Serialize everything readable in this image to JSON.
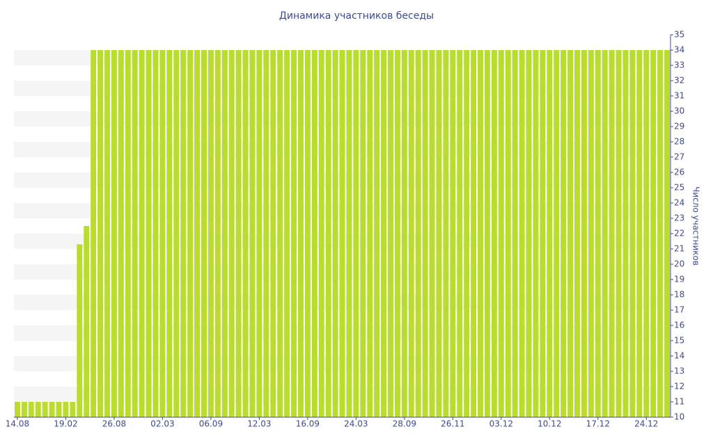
{
  "chart_data": {
    "type": "bar",
    "title": "Динамика участников беседы",
    "y_axis_label": "Число участников",
    "categories": [
      "14.08",
      null,
      null,
      null,
      null,
      null,
      null,
      "19.02",
      null,
      null,
      null,
      null,
      null,
      null,
      "26.08",
      null,
      null,
      null,
      null,
      null,
      null,
      "02.03",
      null,
      null,
      null,
      null,
      null,
      null,
      "06.09",
      null,
      null,
      null,
      null,
      null,
      null,
      "12.03",
      null,
      null,
      null,
      null,
      null,
      null,
      "16.09",
      null,
      null,
      null,
      null,
      null,
      null,
      "24.03",
      null,
      null,
      null,
      null,
      null,
      null,
      "28.09",
      null,
      null,
      null,
      null,
      null,
      null,
      "26.11",
      null,
      null,
      null,
      null,
      null,
      null,
      "03.12",
      null,
      null,
      null,
      null,
      null,
      null,
      "10.12",
      null,
      null,
      null,
      null,
      null,
      null,
      "17.12",
      null,
      null,
      null,
      null,
      null,
      null,
      "24.12",
      null,
      null,
      null
    ],
    "values": [
      11,
      11,
      11,
      11,
      11,
      11,
      11,
      11,
      11,
      21.3,
      22.5,
      34,
      34,
      34,
      34,
      34,
      34,
      34,
      34,
      34,
      34,
      34,
      34,
      34,
      34,
      34,
      34,
      34,
      34,
      34,
      34,
      34,
      34,
      34,
      34,
      34,
      34,
      34,
      34,
      34,
      34,
      34,
      34,
      34,
      34,
      34,
      34,
      34,
      34,
      34,
      34,
      34,
      34,
      34,
      34,
      34,
      34,
      34,
      34,
      34,
      34,
      34,
      34,
      34,
      34,
      34,
      34,
      34,
      34,
      34,
      34,
      34,
      34,
      34,
      34,
      34,
      34,
      34,
      34,
      34,
      34,
      34,
      34,
      34,
      34,
      34,
      34,
      34,
      34,
      34,
      34,
      34,
      34,
      34,
      34
    ],
    "color": "#badc2c",
    "ylim": [
      10,
      35
    ],
    "yticks": [
      10,
      11,
      12,
      13,
      14,
      15,
      16,
      17,
      18,
      19,
      20,
      21,
      22,
      23,
      24,
      25,
      26,
      27,
      28,
      29,
      30,
      31,
      32,
      33,
      34,
      35
    ],
    "y_axis_side": "right",
    "grid": true
  }
}
